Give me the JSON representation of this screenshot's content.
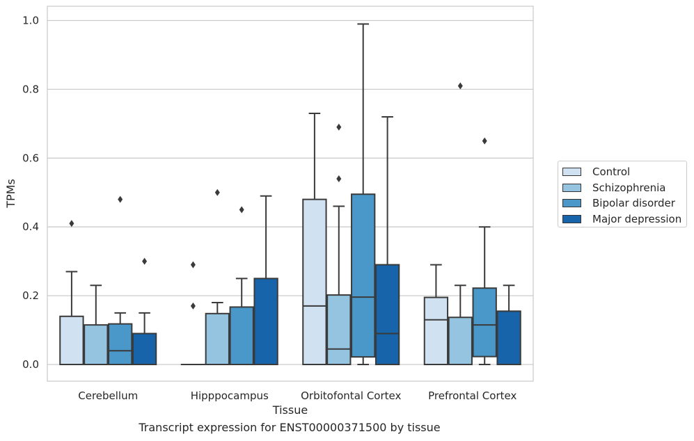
{
  "chart_data": {
    "type": "boxplot",
    "title": "",
    "caption": "Transcript expression for ENST00000371500 by tissue",
    "xlabel": "Tissue",
    "ylabel": "TPMs",
    "ylim": [
      -0.05,
      1.04
    ],
    "yticks": [
      "0.0",
      "0.2",
      "0.4",
      "0.6",
      "0.8",
      "1.0"
    ],
    "grid": true,
    "legend_position": "right",
    "categories": [
      "Cerebellum",
      "Hipppocampus",
      "Orbitofontal Cortex",
      "Prefrontal Cortex"
    ],
    "series": [
      {
        "name": "Control",
        "color": "#d0e1f2",
        "boxes": [
          {
            "min": 0.0,
            "q1": 0.0,
            "median": 0.0,
            "q3": 0.14,
            "max": 0.27,
            "outliers": [
              0.41
            ]
          },
          {
            "min": 0.0,
            "q1": 0.0,
            "median": 0.0,
            "q3": 0.0,
            "max": 0.0,
            "outliers": [
              0.17,
              0.29
            ]
          },
          {
            "min": 0.0,
            "q1": 0.0,
            "median": 0.17,
            "q3": 0.48,
            "max": 0.73,
            "outliers": []
          },
          {
            "min": 0.0,
            "q1": 0.0,
            "median": 0.13,
            "q3": 0.195,
            "max": 0.29,
            "outliers": []
          }
        ]
      },
      {
        "name": "Schizophrenia",
        "color": "#94c4df",
        "boxes": [
          {
            "min": 0.0,
            "q1": 0.0,
            "median": 0.0,
            "q3": 0.115,
            "max": 0.23,
            "outliers": []
          },
          {
            "min": 0.0,
            "q1": 0.0,
            "median": 0.0,
            "q3": 0.148,
            "max": 0.18,
            "outliers": [
              0.5
            ]
          },
          {
            "min": 0.0,
            "q1": 0.0,
            "median": 0.045,
            "q3": 0.202,
            "max": 0.46,
            "outliers": [
              0.54,
              0.69
            ]
          },
          {
            "min": 0.0,
            "q1": 0.0,
            "median": 0.0,
            "q3": 0.137,
            "max": 0.23,
            "outliers": [
              0.81
            ]
          }
        ]
      },
      {
        "name": "Bipolar disorder",
        "color": "#4a98c9",
        "boxes": [
          {
            "min": 0.0,
            "q1": 0.0,
            "median": 0.04,
            "q3": 0.118,
            "max": 0.15,
            "outliers": [
              0.48
            ]
          },
          {
            "min": 0.0,
            "q1": 0.0,
            "median": 0.0,
            "q3": 0.167,
            "max": 0.25,
            "outliers": [
              0.45
            ]
          },
          {
            "min": 0.0,
            "q1": 0.022,
            "median": 0.196,
            "q3": 0.495,
            "max": 0.99,
            "outliers": []
          },
          {
            "min": 0.0,
            "q1": 0.023,
            "median": 0.115,
            "q3": 0.222,
            "max": 0.4,
            "outliers": [
              0.65
            ]
          }
        ]
      },
      {
        "name": "Major depression",
        "color": "#1764ab",
        "boxes": [
          {
            "min": 0.0,
            "q1": 0.0,
            "median": 0.0,
            "q3": 0.09,
            "max": 0.15,
            "outliers": [
              0.3
            ]
          },
          {
            "min": 0.0,
            "q1": 0.0,
            "median": 0.0,
            "q3": 0.25,
            "max": 0.49,
            "outliers": []
          },
          {
            "min": 0.0,
            "q1": 0.0,
            "median": 0.09,
            "q3": 0.29,
            "max": 0.72,
            "outliers": []
          },
          {
            "min": 0.0,
            "q1": 0.0,
            "median": 0.0,
            "q3": 0.155,
            "max": 0.23,
            "outliers": []
          }
        ]
      }
    ]
  }
}
